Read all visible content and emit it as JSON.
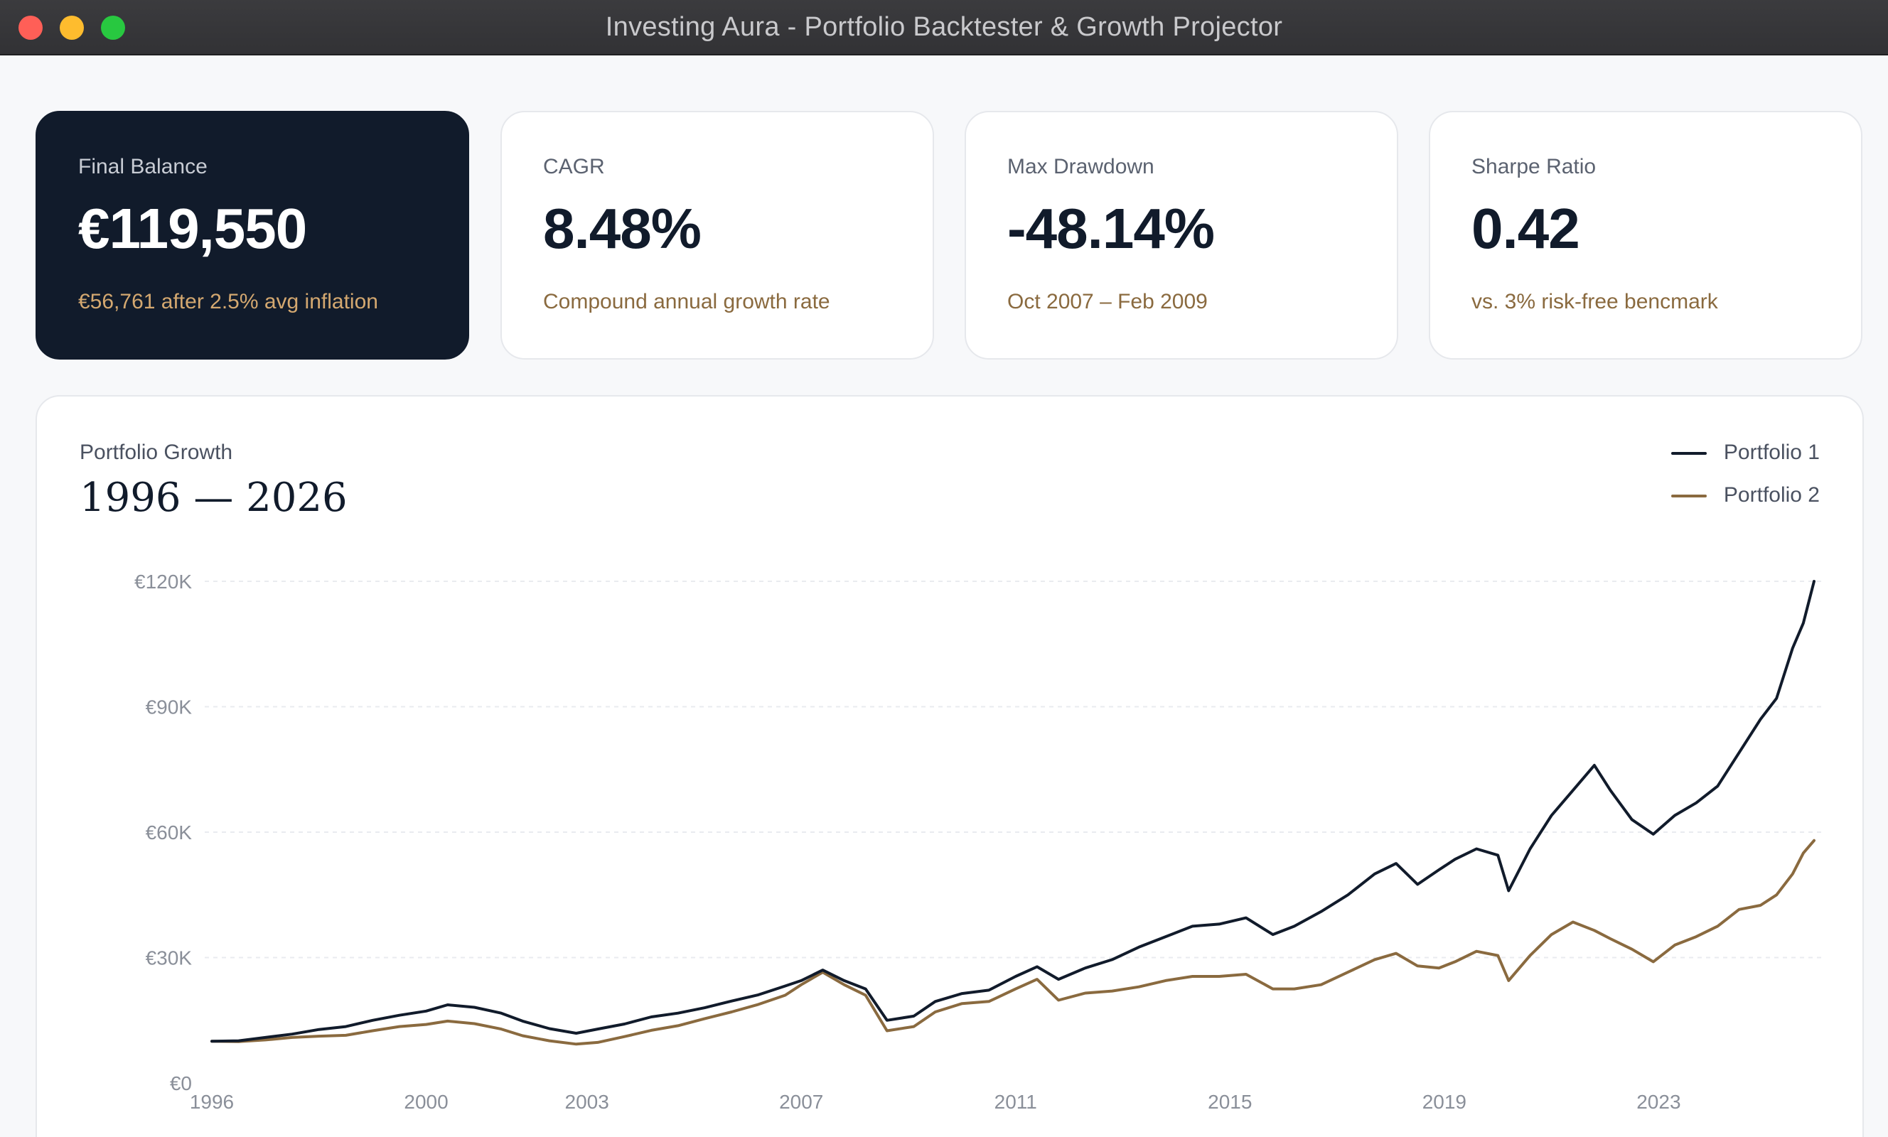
{
  "window": {
    "title": "Investing Aura - Portfolio Backtester & Growth Projector"
  },
  "stats": [
    {
      "label": "Final Balance",
      "value": "€119,550",
      "sub": "€56,761 after 2.5% avg inflation"
    },
    {
      "label": "CAGR",
      "value": "8.48%",
      "sub": "Compound annual growth rate"
    },
    {
      "label": "Max Drawdown",
      "value": "-48.14%",
      "sub": "Oct 2007 – Feb 2009"
    },
    {
      "label": "Sharpe Ratio",
      "value": "0.42",
      "sub": "vs. 3% risk-free bencmark"
    }
  ],
  "colors": {
    "portfolio1": "#111b2b",
    "portfolio2": "#8a6a3f",
    "grid": "#e9ebef"
  },
  "chart_data": {
    "type": "line",
    "label": "Portfolio Growth",
    "title": "1996 — 2026",
    "legend_position": "top-right",
    "grid": true,
    "xlim": [
      1996,
      2025.9
    ],
    "ylim": [
      0,
      120000
    ],
    "y_ticks": [
      {
        "value": 0,
        "label": "€0"
      },
      {
        "value": 30000,
        "label": "€30K"
      },
      {
        "value": 60000,
        "label": "€60K"
      },
      {
        "value": 90000,
        "label": "€90K"
      },
      {
        "value": 120000,
        "label": "€120K"
      }
    ],
    "x_ticks": [
      {
        "value": 1996,
        "label": "1996"
      },
      {
        "value": 2000,
        "label": "2000"
      },
      {
        "value": 2003,
        "label": "2003"
      },
      {
        "value": 2007,
        "label": "2007"
      },
      {
        "value": 2011,
        "label": "2011"
      },
      {
        "value": 2015,
        "label": "2015"
      },
      {
        "value": 2019,
        "label": "2019"
      },
      {
        "value": 2023,
        "label": "2023"
      }
    ],
    "series": [
      {
        "name": "Portfolio 1",
        "x": [
          1996.0,
          1996.5,
          1997.0,
          1997.5,
          1998.0,
          1998.5,
          1999.0,
          1999.5,
          2000.0,
          2000.4,
          2000.9,
          2001.4,
          2001.8,
          2002.3,
          2002.8,
          2003.2,
          2003.7,
          2004.2,
          2004.7,
          2005.2,
          2005.7,
          2006.2,
          2006.7,
          2007.0,
          2007.4,
          2007.8,
          2008.2,
          2008.6,
          2009.1,
          2009.5,
          2010.0,
          2010.5,
          2011.0,
          2011.4,
          2011.8,
          2012.3,
          2012.8,
          2013.3,
          2013.8,
          2014.3,
          2014.8,
          2015.3,
          2015.8,
          2016.2,
          2016.7,
          2017.2,
          2017.7,
          2018.1,
          2018.5,
          2018.9,
          2019.2,
          2019.6,
          2020.0,
          2020.2,
          2020.6,
          2021.0,
          2021.4,
          2021.8,
          2022.1,
          2022.5,
          2022.9,
          2023.3,
          2023.7,
          2024.1,
          2024.5,
          2024.9,
          2025.2,
          2025.5,
          2025.7,
          2025.9
        ],
        "values": [
          10000,
          10100,
          10900,
          11700,
          12800,
          13500,
          15000,
          16200,
          17200,
          18700,
          18100,
          16700,
          14800,
          13000,
          11900,
          12900,
          14100,
          15800,
          16700,
          18000,
          19600,
          21100,
          23200,
          24500,
          27000,
          24500,
          22500,
          15000,
          16000,
          19500,
          21400,
          22200,
          25500,
          27800,
          24800,
          27500,
          29500,
          32500,
          35000,
          37500,
          38000,
          39500,
          35500,
          37500,
          41000,
          45000,
          50000,
          52500,
          47500,
          51000,
          53500,
          56000,
          54500,
          46000,
          56000,
          64000,
          70000,
          76000,
          70000,
          63000,
          59500,
          64000,
          67000,
          71000,
          79000,
          87000,
          92000,
          104000,
          110000,
          120000
        ]
      },
      {
        "name": "Portfolio 2",
        "x": [
          1996.0,
          1996.5,
          1997.0,
          1997.5,
          1998.0,
          1998.5,
          1999.0,
          1999.5,
          2000.0,
          2000.4,
          2000.9,
          2001.4,
          2001.8,
          2002.3,
          2002.8,
          2003.2,
          2003.7,
          2004.2,
          2004.7,
          2005.2,
          2005.7,
          2006.2,
          2006.7,
          2007.0,
          2007.4,
          2007.8,
          2008.2,
          2008.6,
          2009.1,
          2009.5,
          2010.0,
          2010.5,
          2011.0,
          2011.4,
          2011.8,
          2012.3,
          2012.8,
          2013.3,
          2013.8,
          2014.3,
          2014.8,
          2015.3,
          2015.8,
          2016.2,
          2016.7,
          2017.2,
          2017.7,
          2018.1,
          2018.5,
          2018.9,
          2019.2,
          2019.6,
          2020.0,
          2020.2,
          2020.6,
          2021.0,
          2021.4,
          2021.8,
          2022.1,
          2022.5,
          2022.9,
          2023.3,
          2023.7,
          2024.1,
          2024.5,
          2024.9,
          2025.2,
          2025.5,
          2025.7,
          2025.9
        ],
        "values": [
          10000,
          9900,
          10300,
          10900,
          11200,
          11400,
          12500,
          13500,
          14000,
          14800,
          14200,
          12900,
          11300,
          10100,
          9300,
          9700,
          11100,
          12600,
          13700,
          15400,
          17000,
          18800,
          21000,
          23500,
          26500,
          23500,
          21000,
          12500,
          13500,
          17000,
          19000,
          19500,
          22500,
          24800,
          19800,
          21500,
          22000,
          23000,
          24500,
          25500,
          25500,
          26000,
          22500,
          22500,
          23500,
          26500,
          29500,
          31000,
          28000,
          27500,
          29000,
          31500,
          30500,
          24500,
          30500,
          35500,
          38500,
          36500,
          34500,
          32000,
          29000,
          33000,
          35000,
          37500,
          41500,
          42500,
          45000,
          50000,
          55000,
          58000
        ]
      }
    ]
  }
}
